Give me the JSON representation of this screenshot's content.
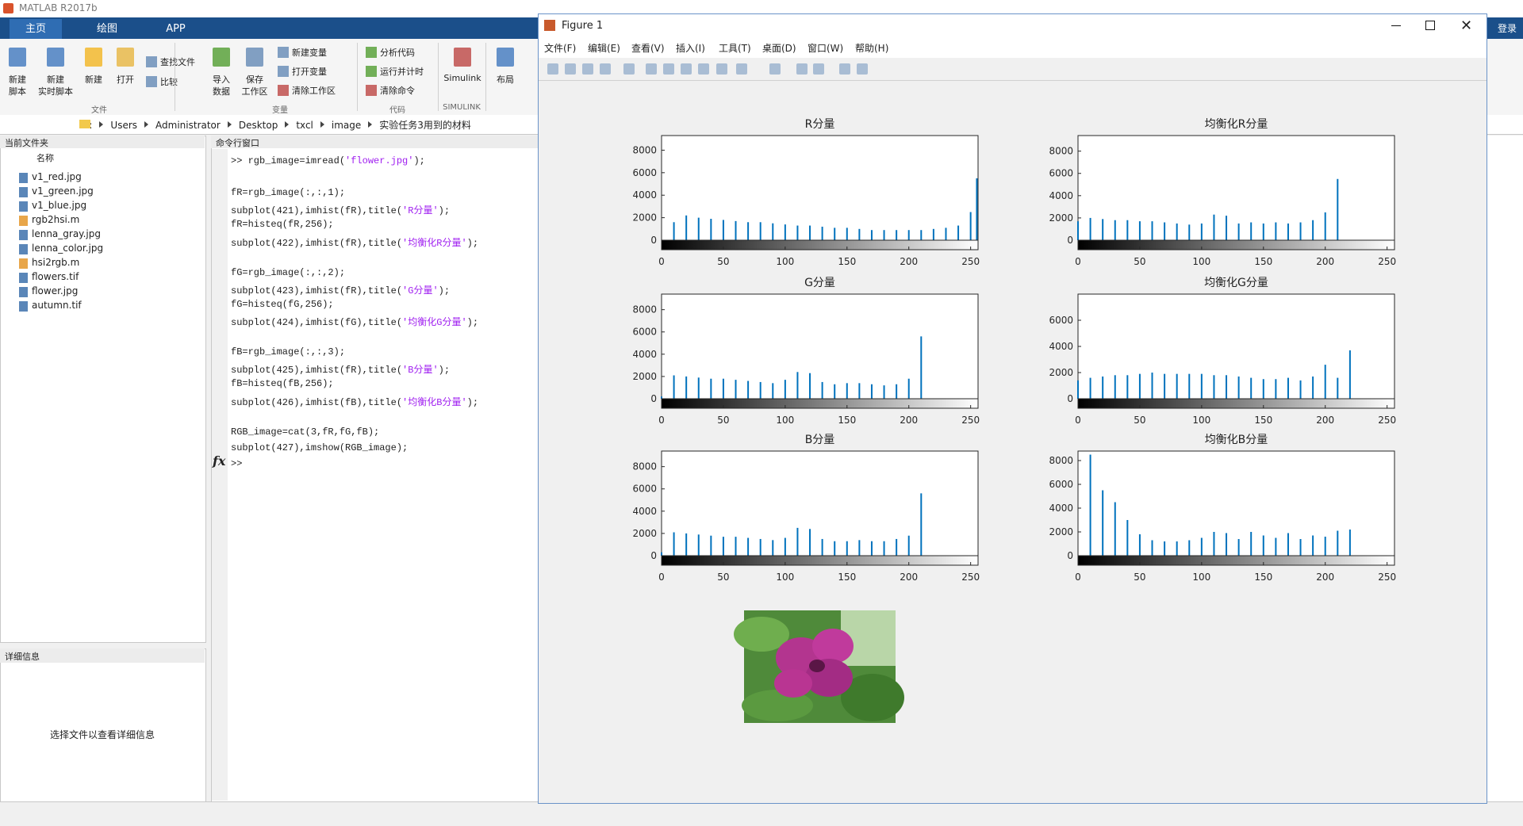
{
  "app": {
    "title": "MATLAB R2017b",
    "tabs": [
      "主页",
      "绘图",
      "APP"
    ],
    "login": "登录"
  },
  "ribbon": {
    "buttons": [
      {
        "label": [
          "新建",
          "脚本"
        ]
      },
      {
        "label": [
          "新建",
          "实时脚本"
        ]
      },
      {
        "label": [
          "新建"
        ]
      },
      {
        "label": [
          "打开"
        ]
      },
      {
        "label": [
          "查找文件"
        ]
      },
      {
        "label": [
          "比较"
        ]
      },
      {
        "label": [
          "导入",
          "数据"
        ]
      },
      {
        "label": [
          "保存",
          "工作区"
        ]
      },
      {
        "label": [
          "新建变量"
        ]
      },
      {
        "label": [
          "打开变量"
        ]
      },
      {
        "label": [
          "清除工作区"
        ]
      },
      {
        "label": [
          "分析代码"
        ]
      },
      {
        "label": [
          "运行并计时"
        ]
      },
      {
        "label": [
          "清除命令"
        ]
      },
      {
        "label": [
          "Simulink"
        ]
      },
      {
        "label": [
          "布局"
        ]
      }
    ],
    "groups": [
      "文件",
      "变量",
      "代码",
      "SIMULINK"
    ]
  },
  "address": {
    "path": [
      "C:",
      "Users",
      "Administrator",
      "Desktop",
      "txcl",
      "image",
      "实验任务3用到的材料"
    ]
  },
  "current_folder": {
    "title": "当前文件夹",
    "column": "名称",
    "files": [
      "v1_red.jpg",
      "v1_green.jpg",
      "v1_blue.jpg",
      "rgb2hsi.m",
      "lenna_gray.jpg",
      "lenna_color.jpg",
      "hsi2rgb.m",
      "flowers.tif",
      "flower.jpg",
      "autumn.tif"
    ]
  },
  "details": {
    "title": "详细信息",
    "message": "选择文件以查看详细信息"
  },
  "command_window": {
    "title": "命令行窗口",
    "blocks": [
      [
        [
          ">> rgb_image=imread(",
          "'flower.jpg'",
          ");"
        ]
      ],
      [
        [
          "fR=rgb_image(:,:,1);"
        ],
        [
          "subplot(421),imhist(fR),title(",
          "'R分量'",
          ");"
        ],
        [
          "fR=histeq(fR,256);"
        ],
        [
          "subplot(422),imhist(fR),title(",
          "'均衡化R分量'",
          ");"
        ]
      ],
      [
        [
          "fG=rgb_image(:,:,2);"
        ],
        [
          "subplot(423),imhist(fR),title(",
          "'G分量'",
          ");"
        ],
        [
          "fG=histeq(fG,256);"
        ],
        [
          "subplot(424),imhist(fG),title(",
          "'均衡化G分量'",
          ");"
        ]
      ],
      [
        [
          "fB=rgb_image(:,:,3);"
        ],
        [
          "subplot(425),imhist(fR),title(",
          "'B分量'",
          ");"
        ],
        [
          "fB=histeq(fB,256);"
        ],
        [
          "subplot(426),imhist(fB),title(",
          "'均衡化B分量'",
          ");"
        ]
      ],
      [
        [
          "RGB_image=cat(3,fR,fG,fB);"
        ],
        [
          "subplot(427),imshow(RGB_image);"
        ]
      ]
    ],
    "prompt": ">>"
  },
  "figure": {
    "title": "Figure 1",
    "menus": [
      "文件(F)",
      "编辑(E)",
      "查看(V)",
      "插入(I)",
      "工具(T)",
      "桌面(D)",
      "窗口(W)",
      "帮助(H)"
    ]
  },
  "chart_data": [
    {
      "type": "bar",
      "title": "R分量",
      "color": "#0072bd",
      "x": [
        0,
        10,
        20,
        30,
        40,
        50,
        60,
        70,
        80,
        90,
        100,
        110,
        120,
        130,
        140,
        150,
        160,
        170,
        180,
        190,
        200,
        210,
        220,
        230,
        240,
        250,
        255
      ],
      "values": [
        0,
        1600,
        2200,
        2000,
        1900,
        1800,
        1700,
        1600,
        1600,
        1500,
        1400,
        1300,
        1300,
        1200,
        1100,
        1100,
        1000,
        900,
        900,
        900,
        900,
        900,
        1000,
        1100,
        1300,
        2500,
        5500
      ],
      "xlim": [
        0,
        256
      ],
      "ylim": [
        0,
        9300
      ],
      "xticks": [
        0,
        50,
        100,
        150,
        200,
        250
      ],
      "yticks": [
        0,
        2000,
        4000,
        6000,
        8000
      ]
    },
    {
      "type": "bar",
      "title": "均衡化R分量",
      "color": "#0072bd",
      "x": [
        0,
        10,
        20,
        30,
        40,
        50,
        60,
        70,
        80,
        90,
        100,
        110,
        120,
        130,
        140,
        150,
        160,
        170,
        180,
        190,
        200,
        210,
        220,
        230,
        240,
        250,
        255
      ],
      "values": [
        1700,
        2000,
        1900,
        1800,
        1800,
        1700,
        1700,
        1600,
        1500,
        1400,
        1500,
        2300,
        2200,
        1500,
        1600,
        1500,
        1600,
        1500,
        1600,
        1800,
        2500,
        5500,
        0,
        0,
        0,
        0,
        0
      ],
      "xlim": [
        0,
        256
      ],
      "ylim": [
        0,
        9400
      ],
      "xticks": [
        0,
        50,
        100,
        150,
        200,
        250
      ],
      "yticks": [
        0,
        2000,
        4000,
        6000,
        8000
      ]
    },
    {
      "type": "bar",
      "title": "G分量",
      "color": "#0072bd",
      "x": [
        0,
        10,
        20,
        30,
        40,
        50,
        60,
        70,
        80,
        90,
        100,
        110,
        120,
        130,
        140,
        150,
        160,
        170,
        180,
        190,
        200,
        210,
        220,
        230,
        240,
        250,
        255
      ],
      "values": [
        200,
        2100,
        2000,
        1900,
        1800,
        1800,
        1700,
        1600,
        1500,
        1400,
        1700,
        2400,
        2300,
        1500,
        1300,
        1400,
        1400,
        1300,
        1200,
        1300,
        1800,
        5600,
        0,
        0,
        0,
        0,
        0
      ],
      "xlim": [
        0,
        256
      ],
      "ylim": [
        0,
        9400
      ],
      "xticks": [
        0,
        50,
        100,
        150,
        200,
        250
      ],
      "yticks": [
        0,
        2000,
        4000,
        6000,
        8000
      ]
    },
    {
      "type": "bar",
      "title": "均衡化G分量",
      "color": "#0072bd",
      "x": [
        0,
        10,
        20,
        30,
        40,
        50,
        60,
        70,
        80,
        90,
        100,
        110,
        120,
        130,
        140,
        150,
        160,
        170,
        180,
        190,
        200,
        210,
        220,
        230,
        240,
        250,
        255
      ],
      "values": [
        1400,
        1600,
        1700,
        1800,
        1800,
        1900,
        2000,
        1900,
        1900,
        1900,
        1900,
        1800,
        1800,
        1700,
        1600,
        1500,
        1500,
        1600,
        1400,
        1700,
        2600,
        1600,
        3700,
        0,
        0,
        0,
        0
      ],
      "xlim": [
        0,
        256
      ],
      "ylim": [
        0,
        8000
      ],
      "xticks": [
        0,
        50,
        100,
        150,
        200,
        250
      ],
      "yticks": [
        0,
        2000,
        4000,
        6000
      ]
    },
    {
      "type": "bar",
      "title": "B分量",
      "color": "#0072bd",
      "x": [
        0,
        10,
        20,
        30,
        40,
        50,
        60,
        70,
        80,
        90,
        100,
        110,
        120,
        130,
        140,
        150,
        160,
        170,
        180,
        190,
        200,
        210,
        220,
        230,
        240,
        250,
        255
      ],
      "values": [
        300,
        2100,
        2000,
        1900,
        1800,
        1700,
        1700,
        1600,
        1500,
        1400,
        1600,
        2500,
        2400,
        1500,
        1300,
        1300,
        1400,
        1300,
        1300,
        1500,
        1800,
        5600,
        0,
        0,
        0,
        0,
        0
      ],
      "xlim": [
        0,
        256
      ],
      "ylim": [
        0,
        9400
      ],
      "xticks": [
        0,
        50,
        100,
        150,
        200,
        250
      ],
      "yticks": [
        0,
        2000,
        4000,
        6000,
        8000
      ]
    },
    {
      "type": "bar",
      "title": "均衡化B分量",
      "color": "#0072bd",
      "x": [
        0,
        10,
        20,
        30,
        40,
        50,
        60,
        70,
        80,
        90,
        100,
        110,
        120,
        130,
        140,
        150,
        160,
        170,
        180,
        190,
        200,
        210,
        220,
        230,
        240,
        250,
        255
      ],
      "values": [
        0,
        8500,
        5500,
        4500,
        3000,
        1800,
        1300,
        1200,
        1200,
        1300,
        1500,
        2000,
        1900,
        1400,
        2000,
        1700,
        1500,
        1900,
        1400,
        1700,
        1600,
        2100,
        2200,
        0,
        0,
        0,
        0
      ],
      "xlim": [
        0,
        256
      ],
      "ylim": [
        0,
        8800
      ],
      "xticks": [
        0,
        50,
        100,
        150,
        200,
        250
      ],
      "yticks": [
        0,
        2000,
        4000,
        6000,
        8000
      ]
    }
  ]
}
